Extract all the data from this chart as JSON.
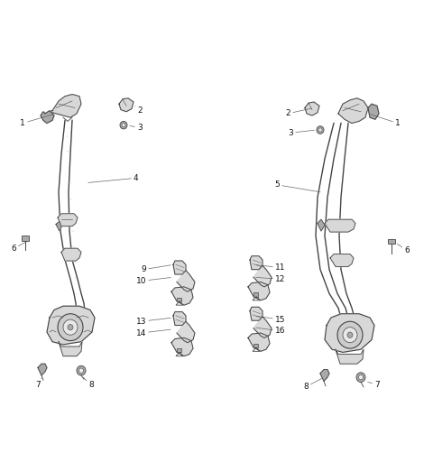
{
  "background_color": "#ffffff",
  "fig_width": 4.8,
  "fig_height": 5.12,
  "dpi": 100,
  "line_color": "#444444",
  "part_fill": "#d8d8d8",
  "dark_fill": "#aaaaaa",
  "font_size": 6.5,
  "label_color": "#111111"
}
